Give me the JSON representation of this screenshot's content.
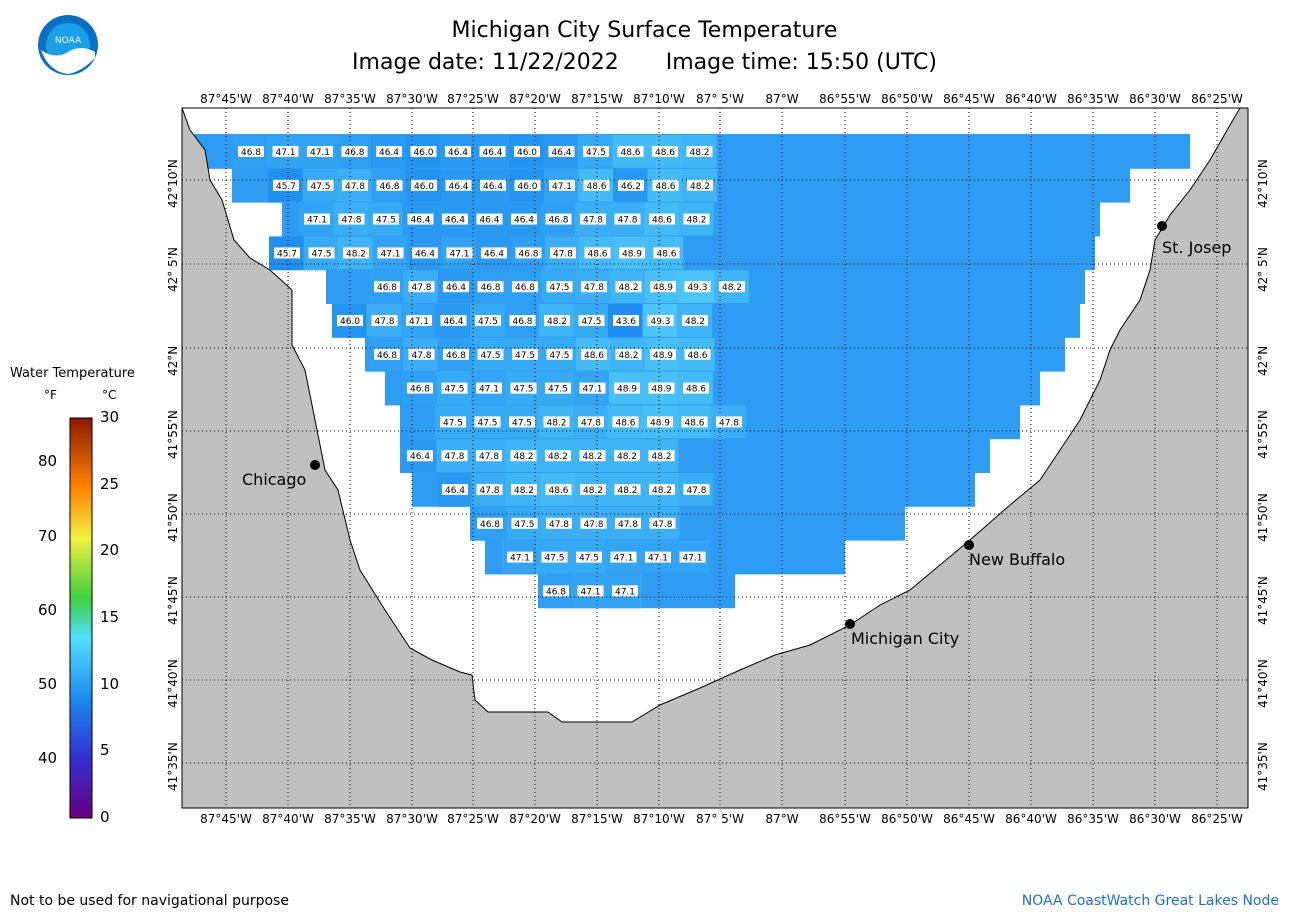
{
  "header": {
    "title": "Michigan City Surface Temperature",
    "image_date": "Image date: 11/22/2022",
    "image_time": "Image time: 15:50 (UTC)",
    "logo_text": "NOAA"
  },
  "axes": {
    "lon_labels": [
      "87°45'W",
      "87°40'W",
      "87°35'W",
      "87°30'W",
      "87°25'W",
      "87°20'W",
      "87°15'W",
      "87°10'W",
      "87° 5'W",
      "87°W",
      "86°55'W",
      "86°50'W",
      "86°45'W",
      "86°40'W",
      "86°35'W",
      "86°30'W",
      "86°25'W"
    ],
    "lat_labels": [
      "42°10'N",
      "42° 5'N",
      "42°N",
      "41°55'N",
      "41°50'N",
      "41°45'N",
      "41°40'N",
      "41°35'N"
    ]
  },
  "legend": {
    "title": "Water Temperature",
    "unit_f": "°F",
    "unit_c": "°C",
    "f_ticks": [
      "80",
      "70",
      "60",
      "50",
      "40"
    ],
    "c_ticks": [
      "30",
      "25",
      "20",
      "15",
      "10",
      "5",
      "0"
    ]
  },
  "cities": [
    {
      "name": "St. Josep"
    },
    {
      "name": "Chicago"
    },
    {
      "name": "New Buffalo"
    },
    {
      "name": "Michigan City"
    }
  ],
  "footer": {
    "left": "Not to be used for navigational purpose",
    "right": "NOAA CoastWatch Great Lakes Node"
  },
  "colors": {
    "land": "#c0c0c0",
    "water_cold": "#2a8cf0",
    "water_warm": "#4cc4f8",
    "unsampled_water": "#ffffff"
  },
  "temperature_grid": [
    [
      "46.8",
      "47.1",
      "47.1",
      "46.8",
      "46.4",
      "46.0",
      "46.4",
      "46.4",
      "46.0",
      "46.4",
      "47.5",
      "48.6",
      "48.6",
      "48.2"
    ],
    [
      "45.7",
      "47.5",
      "47.8",
      "46.8",
      "46.0",
      "46.4",
      "46.4",
      "46.0",
      "47.1",
      "48.6",
      "46.2",
      "48.6",
      "48.2"
    ],
    [
      "47.1",
      "47.8",
      "47.5",
      "46.4",
      "46.4",
      "46.4",
      "46.4",
      "46.8",
      "47.8",
      "47.8",
      "48.6",
      "48.2"
    ],
    [
      "45.7",
      "47.5",
      "48.2",
      "47.1",
      "46.4",
      "47.1",
      "46.4",
      "46.8",
      "47.8",
      "48.6",
      "48.9",
      "48.6"
    ],
    [
      "46.8",
      "47.8",
      "46.4",
      "46.8",
      "46.8",
      "47.5",
      "47.8",
      "48.2",
      "48.9",
      "49.3",
      "48.2"
    ],
    [
      "46.0",
      "47.8",
      "47.1",
      "46.4",
      "47.5",
      "46.8",
      "48.2",
      "47.5",
      "43.6",
      "49.3",
      "48.2"
    ],
    [
      "46.8",
      "47.8",
      "46.8",
      "47.5",
      "47.5",
      "47.5",
      "48.6",
      "48.2",
      "48.9",
      "48.6"
    ],
    [
      "46.8",
      "47.5",
      "47.1",
      "47.5",
      "47.5",
      "47.1",
      "48.9",
      "48.9",
      "48.6"
    ],
    [
      "47.5",
      "47.5",
      "47.5",
      "48.2",
      "47.8",
      "48.6",
      "48.9",
      "48.6",
      "47.8"
    ],
    [
      "46.4",
      "47.8",
      "47.8",
      "48.2",
      "48.2",
      "48.2",
      "48.2",
      "48.2"
    ],
    [
      "46.4",
      "47.8",
      "48.2",
      "48.6",
      "48.2",
      "48.2",
      "48.2",
      "47.8"
    ],
    [
      "46.8",
      "47.5",
      "47.8",
      "47.8",
      "47.8",
      "47.8"
    ],
    [
      "47.1",
      "47.5",
      "47.5",
      "47.1",
      "47.1",
      "47.1"
    ],
    [
      "46.8",
      "47.1",
      "47.1"
    ]
  ]
}
